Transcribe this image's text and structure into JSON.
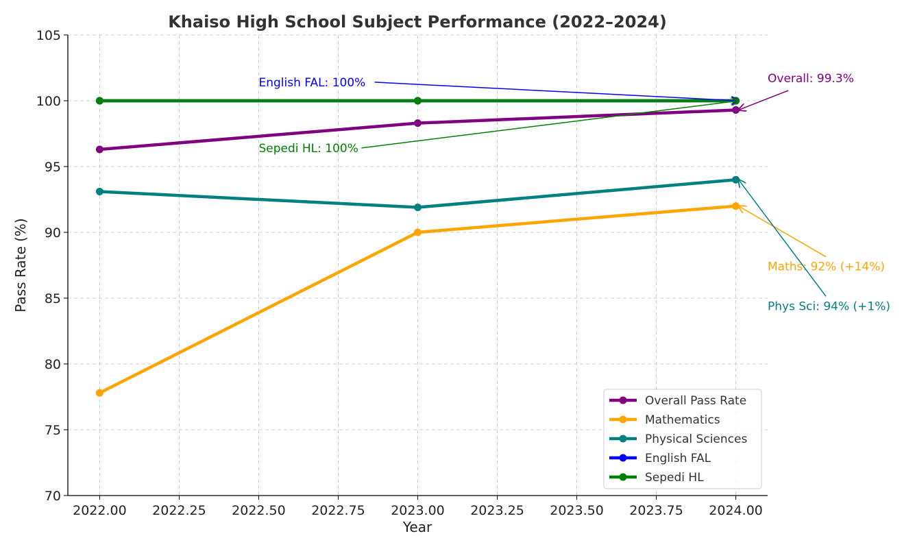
{
  "chart_data": {
    "type": "line",
    "title": "Khaiso High School Subject Performance (2022–2024)",
    "xlabel": "Year",
    "ylabel": "Pass Rate (%)",
    "xlim": [
      2021.9,
      2024.1
    ],
    "ylim": [
      70,
      105
    ],
    "xticks": [
      2022.0,
      2022.25,
      2022.5,
      2022.75,
      2023.0,
      2023.25,
      2023.5,
      2023.75,
      2024.0
    ],
    "xtick_labels": [
      "2022.00",
      "2022.25",
      "2022.50",
      "2022.75",
      "2023.00",
      "2023.25",
      "2023.50",
      "2023.75",
      "2024.00"
    ],
    "yticks": [
      70,
      75,
      80,
      85,
      90,
      95,
      100,
      105
    ],
    "ytick_labels": [
      "70",
      "75",
      "80",
      "85",
      "90",
      "95",
      "100",
      "105"
    ],
    "grid": true,
    "legend_position": "lower-right",
    "x": [
      2022,
      2023,
      2024
    ],
    "series": [
      {
        "name": "Overall Pass Rate",
        "values": [
          96.3,
          98.3,
          99.3
        ],
        "color": "#800080"
      },
      {
        "name": "Mathematics",
        "values": [
          77.8,
          90.0,
          92.0
        ],
        "color": "#FFA500"
      },
      {
        "name": "Physical Sciences",
        "values": [
          93.1,
          91.9,
          94.0
        ],
        "color": "#008080"
      },
      {
        "name": "English FAL",
        "values": [
          100,
          100,
          100
        ],
        "color": "#0000FF"
      },
      {
        "name": "Sepedi HL",
        "values": [
          100,
          100,
          100
        ],
        "color": "#008000"
      }
    ],
    "annotations": [
      {
        "text": "English FAL: 100%",
        "point": [
          2024,
          100
        ],
        "text_at": [
          2022.5,
          101.1
        ],
        "color": "#0000FF"
      },
      {
        "text": "Sepedi HL: 100%",
        "point": [
          2024,
          100
        ],
        "text_at": [
          2022.5,
          96.1
        ],
        "color": "#008000"
      },
      {
        "text": "Overall: 99.3%",
        "point": [
          2024,
          99.3
        ],
        "text_at": [
          2024.1,
          101.4
        ],
        "color": "#800080"
      },
      {
        "text": "Maths: 92% (+14%)",
        "point": [
          2024,
          92
        ],
        "text_at": [
          2024.1,
          87.1
        ],
        "color": "#FFA500"
      },
      {
        "text": "Phys Sci: 94% (+1%)",
        "point": [
          2024,
          94
        ],
        "text_at": [
          2024.1,
          84.1
        ],
        "color": "#008080"
      }
    ]
  }
}
